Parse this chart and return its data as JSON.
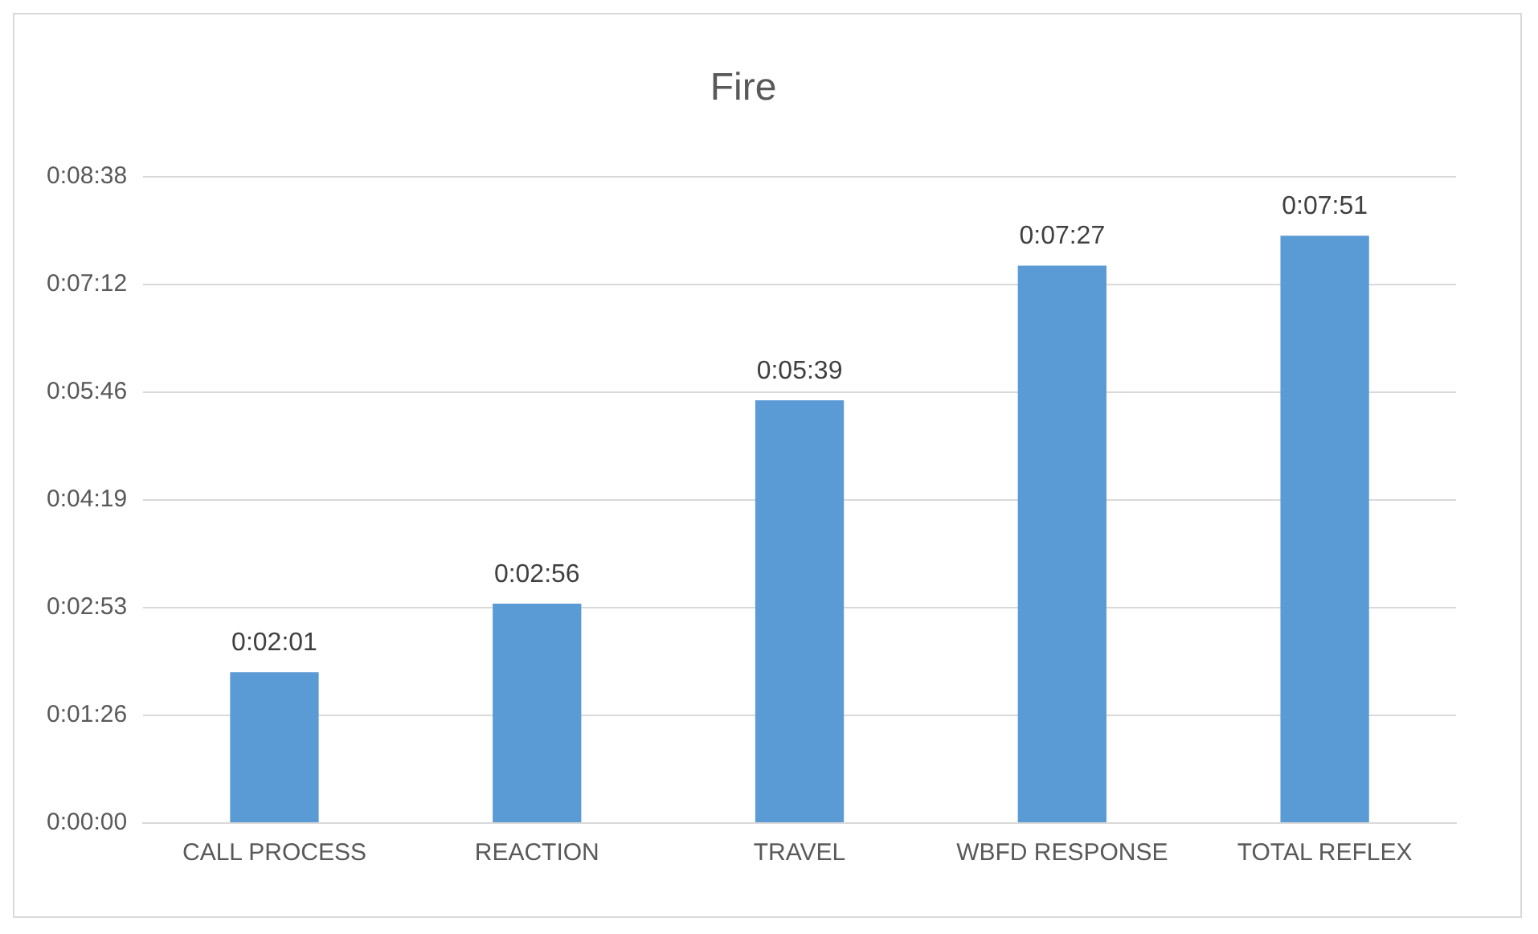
{
  "chart_data": {
    "type": "bar",
    "title": "Fire",
    "categories": [
      "CALL PROCESS",
      "REACTION",
      "TRAVEL",
      "WBFD RESPONSE",
      "TOTAL REFLEX"
    ],
    "values": [
      121,
      176,
      339,
      447,
      471
    ],
    "value_labels": [
      "0:02:01",
      "0:02:56",
      "0:05:39",
      "0:07:27",
      "0:07:51"
    ],
    "color": "#5b9bd5",
    "ylim": [
      0,
      518.4
    ],
    "yticks": [
      {
        "value": 0,
        "label": "0:00:00"
      },
      {
        "value": 86.4,
        "label": "0:01:26"
      },
      {
        "value": 172.8,
        "label": "0:02:53"
      },
      {
        "value": 259.2,
        "label": "0:04:19"
      },
      {
        "value": 345.6,
        "label": "0:05:46"
      },
      {
        "value": 432,
        "label": "0:07:12"
      },
      {
        "value": 518.4,
        "label": "0:08:38"
      }
    ],
    "grid": "y",
    "legend": false
  }
}
